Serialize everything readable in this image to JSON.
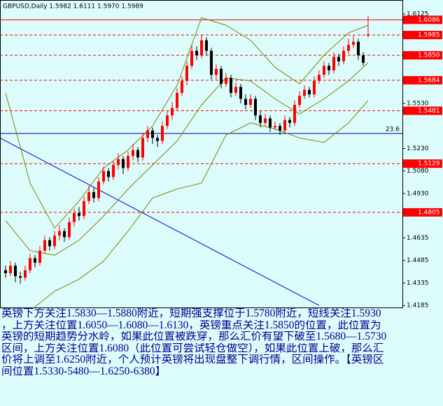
{
  "chart_data": {
    "type": "candlestick",
    "title": "GBPUSD,Daily  1.5982 1.6111 1.5970 1.5989",
    "up_color": "#ff0000",
    "down_color": "#000000",
    "xlim": [
      -1.14,
      81
    ],
    "ylim": [
      1.4172,
      1.6218
    ],
    "yticks": [
      1.6125,
      {
        "value": 1.553,
        "label": "1.5530"
      },
      {
        "value": 1.523,
        "label": "1.5230"
      },
      {
        "value": 1.508,
        "label": "1.5080"
      },
      {
        "value": 1.493,
        "label": "1.4930"
      },
      1.4635,
      1.4485,
      1.4335,
      1.4185
    ],
    "open": [
      1.442,
      1.44,
      1.445,
      1.438,
      1.437,
      1.442,
      1.45,
      1.447,
      1.455,
      1.462,
      1.458,
      1.465,
      1.468,
      1.464,
      1.474,
      1.48,
      1.478,
      1.488,
      1.494,
      1.49,
      1.501,
      1.508,
      1.504,
      1.512,
      1.516,
      1.51,
      1.518,
      1.522,
      1.517,
      1.53,
      1.535,
      1.53,
      1.528,
      1.538,
      1.545,
      1.55,
      1.56,
      1.568,
      1.578,
      1.588,
      1.585,
      1.595,
      1.588,
      1.572,
      1.576,
      1.566,
      1.57,
      1.56,
      1.564,
      1.556,
      1.552,
      1.556,
      1.545,
      1.54,
      1.543,
      1.537,
      1.538,
      1.535,
      1.542,
      1.54,
      1.552,
      1.558,
      1.562,
      1.559,
      1.568,
      1.572,
      1.578,
      1.575,
      1.584,
      1.581,
      1.588,
      1.592,
      1.594,
      1.585,
      1.5982
    ],
    "high": [
      1.445,
      1.448,
      1.447,
      1.441,
      1.445,
      1.453,
      1.452,
      1.458,
      1.465,
      1.464,
      1.468,
      1.472,
      1.47,
      1.477,
      1.483,
      1.484,
      1.491,
      1.498,
      1.497,
      1.504,
      1.511,
      1.51,
      1.515,
      1.52,
      1.518,
      1.521,
      1.526,
      1.524,
      1.533,
      1.538,
      1.537,
      1.532,
      1.541,
      1.548,
      1.554,
      1.563,
      1.571,
      1.581,
      1.592,
      1.591,
      1.599,
      1.597,
      1.59,
      1.579,
      1.578,
      1.573,
      1.572,
      1.567,
      1.566,
      1.559,
      1.559,
      1.558,
      1.548,
      1.546,
      1.545,
      1.541,
      1.54,
      1.545,
      1.544,
      1.555,
      1.561,
      1.565,
      1.564,
      1.571,
      1.575,
      1.581,
      1.58,
      1.587,
      1.586,
      1.591,
      1.596,
      1.598,
      1.596,
      1.587,
      1.6111
    ],
    "low": [
      1.437,
      1.438,
      1.434,
      1.433,
      1.435,
      1.44,
      1.444,
      1.445,
      1.453,
      1.455,
      1.456,
      1.462,
      1.461,
      1.462,
      1.471,
      1.475,
      1.476,
      1.486,
      1.487,
      1.488,
      1.499,
      1.501,
      1.502,
      1.509,
      1.506,
      1.508,
      1.515,
      1.514,
      1.515,
      1.527,
      1.526,
      1.524,
      1.526,
      1.536,
      1.542,
      1.548,
      1.558,
      1.565,
      1.576,
      1.582,
      1.583,
      1.585,
      1.569,
      1.569,
      1.563,
      1.564,
      1.557,
      1.558,
      1.553,
      1.549,
      1.55,
      1.542,
      1.537,
      1.538,
      1.534,
      1.535,
      1.532,
      1.533,
      1.537,
      1.538,
      1.55,
      1.556,
      1.557,
      1.557,
      1.566,
      1.57,
      1.572,
      1.573,
      1.578,
      1.579,
      1.586,
      1.59,
      1.582,
      1.578,
      1.597
    ],
    "close": [
      1.44,
      1.445,
      1.438,
      1.437,
      1.442,
      1.45,
      1.447,
      1.455,
      1.462,
      1.458,
      1.465,
      1.468,
      1.464,
      1.474,
      1.48,
      1.478,
      1.488,
      1.494,
      1.49,
      1.501,
      1.508,
      1.504,
      1.512,
      1.516,
      1.51,
      1.518,
      1.522,
      1.517,
      1.53,
      1.535,
      1.53,
      1.528,
      1.538,
      1.545,
      1.55,
      1.56,
      1.568,
      1.578,
      1.588,
      1.585,
      1.595,
      1.588,
      1.572,
      1.576,
      1.566,
      1.57,
      1.56,
      1.564,
      1.556,
      1.552,
      1.556,
      1.545,
      1.54,
      1.543,
      1.537,
      1.538,
      1.535,
      1.542,
      1.54,
      1.552,
      1.558,
      1.562,
      1.559,
      1.568,
      1.572,
      1.578,
      1.575,
      1.584,
      1.581,
      1.588,
      1.592,
      1.594,
      1.585,
      1.58,
      1.5989
    ],
    "bands": {
      "color": "#808000",
      "x": [
        0,
        5,
        10,
        15,
        20,
        25,
        30,
        35,
        40,
        45,
        50,
        55,
        60,
        65,
        70,
        74
      ],
      "upper": [
        1.56,
        1.5,
        1.47,
        1.488,
        1.51,
        1.522,
        1.538,
        1.565,
        1.61,
        1.605,
        1.595,
        1.577,
        1.566,
        1.585,
        1.6,
        1.605
      ],
      "middle": [
        1.475,
        1.455,
        1.452,
        1.462,
        1.478,
        1.496,
        1.512,
        1.528,
        1.552,
        1.57,
        1.568,
        1.556,
        1.546,
        1.556,
        1.568,
        1.58
      ],
      "lower": [
        1.415,
        1.415,
        1.428,
        1.436,
        1.448,
        1.468,
        1.49,
        1.496,
        1.5,
        1.532,
        1.54,
        1.536,
        1.53,
        1.527,
        1.54,
        1.555
      ]
    },
    "levels": [
      1.6086,
      1.5985,
      {
        "value": 1.585,
        "label": "1.5850"
      },
      1.5684,
      1.5481,
      1.5129,
      1.4805
    ],
    "fib_level": {
      "value": 1.533,
      "label": "23.6"
    },
    "trendline": {
      "x": [
        -1.14,
        64
      ],
      "y": [
        1.53,
        1.4185
      ]
    },
    "commentary": [
      "英镑下方关注1.5830—1.5880附近，短期强支撑位于1.5780附近，短线关注1.5930",
      "，上方关注位置1.6050—1.6080—1.6130，英镑重点关注1.5850的位置，此位置为",
      "英镑的短期趋势分水岭，如果此位置被跌穿，那么汇价有望下破至1.5680—1.5730",
      "区间，上方关注位置1.6080（此位置可尝试轻仓做空），如果此位置上破，那么汇",
      "价将上调至1.6250附近，个人预计英镑将出现盘整下调行情，区间操作。【英镑区",
      "间位置1.5330-5480—1.6250-6380】"
    ]
  }
}
